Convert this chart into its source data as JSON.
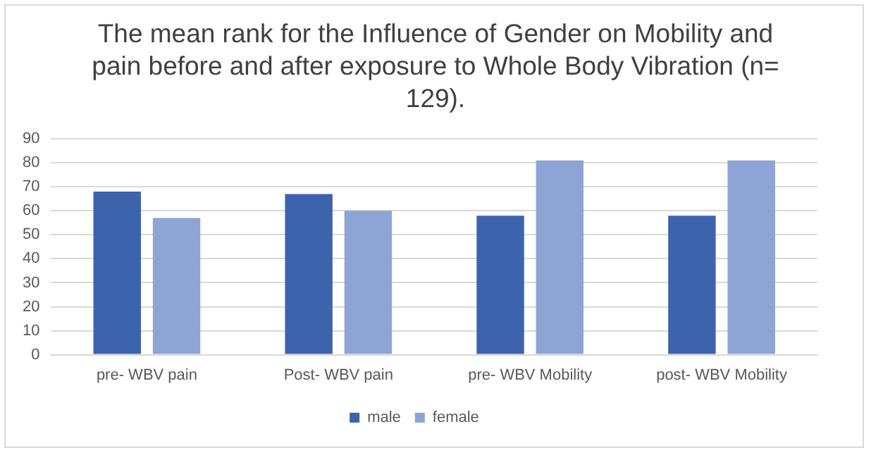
{
  "chart_data": {
    "type": "bar",
    "title": "The mean rank for the Influence of Gender on Mobility and pain before and after exposure to Whole Body Vibration (n= 129).",
    "categories": [
      "pre- WBV pain",
      "Post- WBV pain",
      "pre- WBV Mobility",
      "post- WBV Mobility"
    ],
    "series": [
      {
        "name": "male",
        "color": "#3e63ad",
        "values": [
          68,
          67,
          58,
          58
        ]
      },
      {
        "name": "female",
        "color": "#8ea4d4",
        "values": [
          57,
          60,
          81,
          81
        ]
      }
    ],
    "ylim": [
      0,
      90
    ],
    "yticks": [
      0,
      10,
      20,
      30,
      40,
      50,
      60,
      70,
      80,
      90
    ],
    "grid": "y",
    "legend": "bottom"
  }
}
